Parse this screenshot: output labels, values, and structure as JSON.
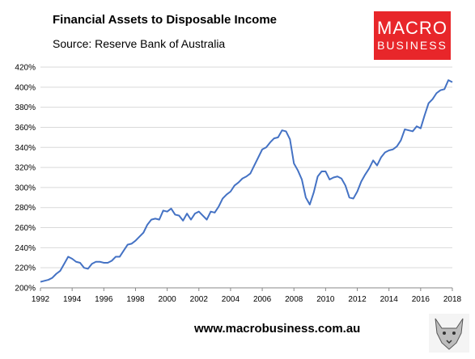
{
  "header": {
    "title": "Financial Assets to Disposable Income",
    "source": "Source: Reserve Bank of Australia"
  },
  "logo": {
    "line1": "MACRO",
    "line2": "BUSINESS",
    "color": "#e8262a"
  },
  "footer": {
    "url": "www.macrobusiness.com.au"
  },
  "chart_data": {
    "type": "line",
    "title": "Financial Assets to Disposable Income",
    "xlabel": "",
    "ylabel": "",
    "xlim": [
      1992,
      2018
    ],
    "ylim": [
      200,
      420
    ],
    "x_ticks": [
      "1992",
      "1994",
      "1996",
      "1998",
      "2000",
      "2002",
      "2004",
      "2006",
      "2008",
      "2010",
      "2012",
      "2014",
      "2016",
      "2018"
    ],
    "y_ticks": [
      "200%",
      "220%",
      "240%",
      "260%",
      "280%",
      "300%",
      "320%",
      "340%",
      "360%",
      "380%",
      "400%",
      "420%"
    ],
    "grid": "horizontal",
    "line_color": "#4472c4",
    "series": [
      {
        "x": [
          1992.0,
          1992.25,
          1992.5,
          1992.75,
          1993.0,
          1993.25,
          1993.5,
          1993.75,
          1994.0,
          1994.25,
          1994.5,
          1994.75,
          1995.0,
          1995.25,
          1995.5,
          1995.75,
          1996.0,
          1996.25,
          1996.5,
          1996.75,
          1997.0,
          1997.25,
          1997.5,
          1997.75,
          1998.0,
          1998.25,
          1998.5,
          1998.75,
          1999.0,
          1999.25,
          1999.5,
          1999.75,
          2000.0,
          2000.25,
          2000.5,
          2000.75,
          2001.0,
          2001.25,
          2001.5,
          2001.75,
          2002.0,
          2002.25,
          2002.5,
          2002.75,
          2003.0,
          2003.25,
          2003.5,
          2003.75,
          2004.0,
          2004.25,
          2004.5,
          2004.75,
          2005.0,
          2005.25,
          2005.5,
          2005.75,
          2006.0,
          2006.25,
          2006.5,
          2006.75,
          2007.0,
          2007.25,
          2007.5,
          2007.75,
          2008.0,
          2008.25,
          2008.5,
          2008.75,
          2009.0,
          2009.25,
          2009.5,
          2009.75,
          2010.0,
          2010.25,
          2010.5,
          2010.75,
          2011.0,
          2011.25,
          2011.5,
          2011.75,
          2012.0,
          2012.25,
          2012.5,
          2012.75,
          2013.0,
          2013.25,
          2013.5,
          2013.75,
          2014.0,
          2014.25,
          2014.5,
          2014.75,
          2015.0,
          2015.25,
          2015.5,
          2015.75,
          2016.0,
          2016.25,
          2016.5,
          2016.75,
          2017.0,
          2017.25,
          2017.5,
          2017.75,
          2018.0
        ],
        "values": [
          206,
          207,
          208,
          210,
          214,
          217,
          224,
          231,
          229,
          226,
          225,
          220,
          219,
          224,
          226,
          226,
          225,
          225,
          227,
          231,
          231,
          237,
          243,
          244,
          247,
          251,
          255,
          263,
          268,
          269,
          268,
          277,
          276,
          279,
          273,
          272,
          267,
          274,
          268,
          274,
          276,
          272,
          268,
          276,
          275,
          281,
          289,
          293,
          296,
          302,
          305,
          309,
          311,
          314,
          322,
          330,
          338,
          340,
          345,
          349,
          350,
          357,
          356,
          348,
          324,
          317,
          308,
          290,
          283,
          295,
          311,
          316,
          316,
          308,
          310,
          311,
          309,
          302,
          290,
          289,
          296,
          306,
          313,
          319,
          327,
          322,
          330,
          335,
          337,
          338,
          341,
          347,
          358,
          357,
          356,
          361,
          359,
          372,
          384,
          388,
          394,
          397,
          398,
          407,
          405
        ]
      }
    ]
  }
}
